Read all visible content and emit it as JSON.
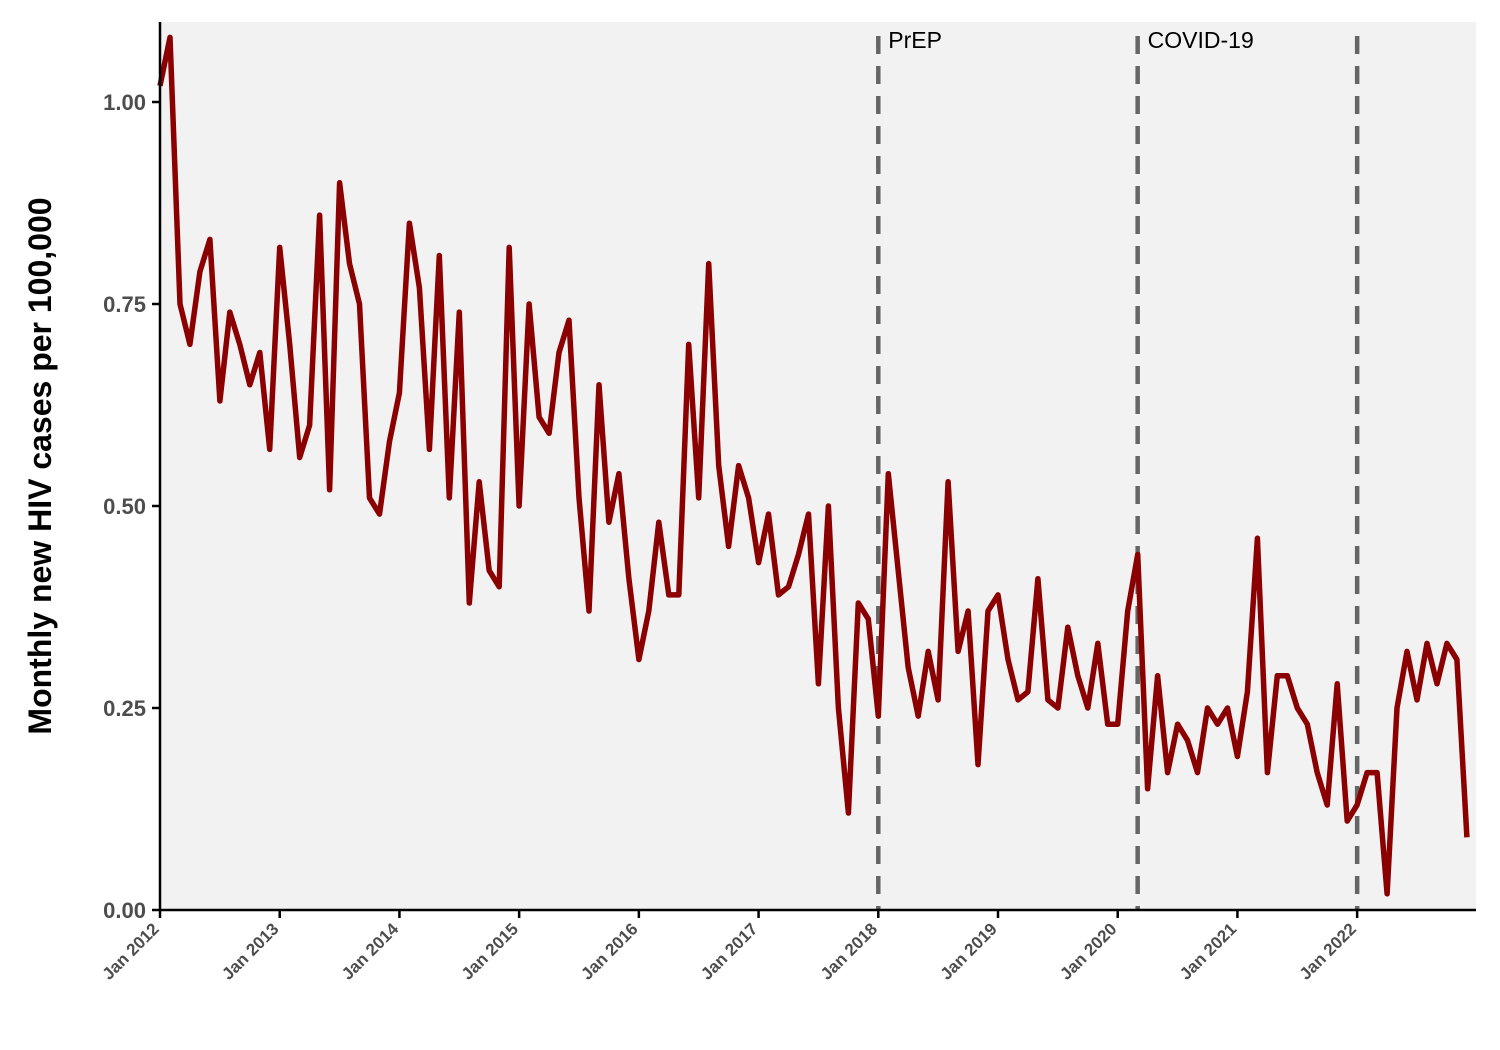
{
  "chart_data": {
    "type": "line",
    "title": "",
    "xlabel": "",
    "ylabel": "Monthly new HIV cases per 100,000",
    "ylim": [
      0,
      1.1
    ],
    "xlim": [
      "2012-01",
      "2022-12"
    ],
    "grid": false,
    "y_ticks": [
      0,
      0.25,
      0.5,
      0.75,
      1.0
    ],
    "y_tick_labels": [
      "0.00",
      "0.25",
      "0.50",
      "0.75",
      "1.00"
    ],
    "x_ticks": [
      "2012-01",
      "2013-01",
      "2014-01",
      "2015-01",
      "2016-01",
      "2017-01",
      "2018-01",
      "2019-01",
      "2020-01",
      "2021-01",
      "2022-01"
    ],
    "x_tick_labels": [
      "Jan 2012",
      "Jan 2013",
      "Jan 2014",
      "Jan 2015",
      "Jan 2016",
      "Jan 2017",
      "Jan 2018",
      "Jan 2019",
      "Jan 2020",
      "Jan 2021",
      "Jan 2022"
    ],
    "colors": {
      "line": "#8b0000",
      "panel": "#f2f2f2",
      "vline": "#666666"
    },
    "annotations": [
      {
        "x": "2018-01",
        "label": "PrEP"
      },
      {
        "x": "2020-03",
        "label": "COVID-19"
      },
      {
        "x": "2022-01",
        "label": ""
      }
    ],
    "series": [
      {
        "x": [
          "2012-01",
          "2012-02",
          "2012-03",
          "2012-04",
          "2012-05",
          "2012-06",
          "2012-07",
          "2012-08",
          "2012-09",
          "2012-10",
          "2012-11",
          "2012-12",
          "2013-01",
          "2013-02",
          "2013-03",
          "2013-04",
          "2013-05",
          "2013-06",
          "2013-07",
          "2013-08",
          "2013-09",
          "2013-10",
          "2013-11",
          "2013-12",
          "2014-01",
          "2014-02",
          "2014-03",
          "2014-04",
          "2014-05",
          "2014-06",
          "2014-07",
          "2014-08",
          "2014-09",
          "2014-10",
          "2014-11",
          "2014-12",
          "2015-01",
          "2015-02",
          "2015-03",
          "2015-04",
          "2015-05",
          "2015-06",
          "2015-07",
          "2015-08",
          "2015-09",
          "2015-10",
          "2015-11",
          "2015-12",
          "2016-01",
          "2016-02",
          "2016-03",
          "2016-04",
          "2016-05",
          "2016-06",
          "2016-07",
          "2016-08",
          "2016-09",
          "2016-10",
          "2016-11",
          "2016-12",
          "2017-01",
          "2017-02",
          "2017-03",
          "2017-04",
          "2017-05",
          "2017-06",
          "2017-07",
          "2017-08",
          "2017-09",
          "2017-10",
          "2017-11",
          "2017-12",
          "2018-01",
          "2018-02",
          "2018-03",
          "2018-04",
          "2018-05",
          "2018-06",
          "2018-07",
          "2018-08",
          "2018-09",
          "2018-10",
          "2018-11",
          "2018-12",
          "2019-01",
          "2019-02",
          "2019-03",
          "2019-04",
          "2019-05",
          "2019-06",
          "2019-07",
          "2019-08",
          "2019-09",
          "2019-10",
          "2019-11",
          "2019-12",
          "2020-01",
          "2020-02",
          "2020-03",
          "2020-04",
          "2020-05",
          "2020-06",
          "2020-07",
          "2020-08",
          "2020-09",
          "2020-10",
          "2020-11",
          "2020-12",
          "2021-01",
          "2021-02",
          "2021-03",
          "2021-04",
          "2021-05",
          "2021-06",
          "2021-07",
          "2021-08",
          "2021-09",
          "2021-10",
          "2021-11",
          "2021-12",
          "2022-01",
          "2022-02",
          "2022-03",
          "2022-04",
          "2022-05",
          "2022-06",
          "2022-07",
          "2022-08",
          "2022-09",
          "2022-10",
          "2022-11",
          "2022-12"
        ],
        "values": [
          1.02,
          1.08,
          0.75,
          0.7,
          0.79,
          0.83,
          0.63,
          0.74,
          0.7,
          0.65,
          0.69,
          0.57,
          0.82,
          0.7,
          0.56,
          0.6,
          0.86,
          0.52,
          0.9,
          0.8,
          0.75,
          0.51,
          0.49,
          0.58,
          0.64,
          0.85,
          0.77,
          0.57,
          0.81,
          0.51,
          0.74,
          0.38,
          0.53,
          0.42,
          0.4,
          0.82,
          0.5,
          0.75,
          0.61,
          0.59,
          0.69,
          0.73,
          0.51,
          0.37,
          0.65,
          0.48,
          0.54,
          0.41,
          0.31,
          0.37,
          0.48,
          0.39,
          0.39,
          0.7,
          0.51,
          0.8,
          0.55,
          0.45,
          0.55,
          0.51,
          0.43,
          0.49,
          0.39,
          0.4,
          0.44,
          0.49,
          0.28,
          0.5,
          0.25,
          0.12,
          0.38,
          0.36,
          0.24,
          0.54,
          0.42,
          0.3,
          0.24,
          0.32,
          0.26,
          0.53,
          0.32,
          0.37,
          0.18,
          0.37,
          0.39,
          0.31,
          0.26,
          0.27,
          0.41,
          0.26,
          0.25,
          0.35,
          0.29,
          0.25,
          0.33,
          0.23,
          0.23,
          0.37,
          0.44,
          0.15,
          0.29,
          0.17,
          0.23,
          0.21,
          0.17,
          0.25,
          0.23,
          0.25,
          0.19,
          0.27,
          0.46,
          0.17,
          0.29,
          0.29,
          0.25,
          0.23,
          0.17,
          0.13,
          0.28,
          0.11,
          0.13,
          0.17,
          0.17,
          0.02,
          0.25,
          0.32,
          0.26,
          0.33,
          0.28,
          0.33,
          0.31,
          0.09
        ]
      }
    ]
  }
}
